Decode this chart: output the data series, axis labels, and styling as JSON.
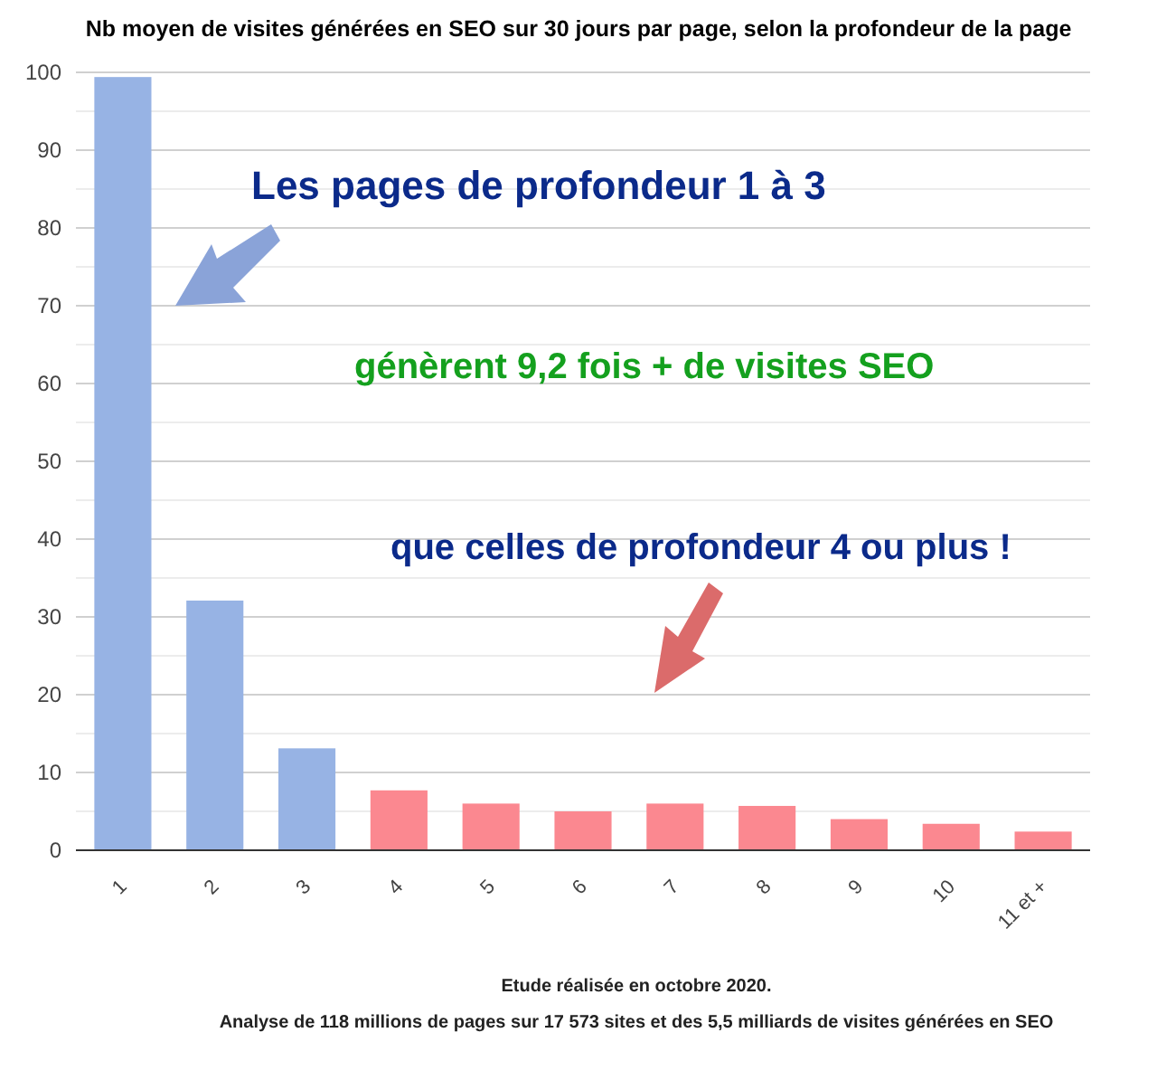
{
  "chart_data": {
    "type": "bar",
    "title": "Nb moyen de visites générées en SEO sur 30 jours par page, selon la profondeur de la page",
    "categories": [
      "1",
      "2",
      "3",
      "4",
      "5",
      "6",
      "7",
      "8",
      "9",
      "10",
      "11 et +"
    ],
    "values": [
      99.4,
      32.1,
      13.1,
      7.7,
      6.0,
      5.0,
      6.0,
      5.7,
      4.0,
      3.4,
      2.4
    ],
    "colors": [
      "#97b3e4",
      "#97b3e4",
      "#97b3e4",
      "#fb8890",
      "#fb8890",
      "#fb8890",
      "#fb8890",
      "#fb8890",
      "#fb8890",
      "#fb8890",
      "#fb8890"
    ],
    "ylim": [
      0,
      100
    ],
    "yticks": [
      0,
      {
        "value": 5,
        "label": null
      },
      10,
      {
        "value": 15,
        "label": null
      },
      20,
      {
        "value": 25,
        "label": null
      },
      30,
      {
        "value": 35,
        "label": null
      },
      40,
      {
        "value": 45,
        "label": null
      },
      50,
      {
        "value": 55,
        "label": null
      },
      60,
      {
        "value": 65,
        "label": null
      },
      70,
      {
        "value": 75,
        "label": null
      },
      80,
      {
        "value": 85,
        "label": null
      },
      90,
      {
        "value": 95,
        "label": null
      },
      100
    ],
    "grid": "y",
    "annotations": [
      "Les pages de profondeur 1 à 3",
      "génèrent 9,2 fois + de visites SEO",
      "que celles de profondeur 4 ou plus !",
      "Etude réalisée en octobre 2020.",
      "Analyse de 118 millions de pages sur 17 573 sites et des 5,5 milliards de visites générées en SEO"
    ]
  }
}
